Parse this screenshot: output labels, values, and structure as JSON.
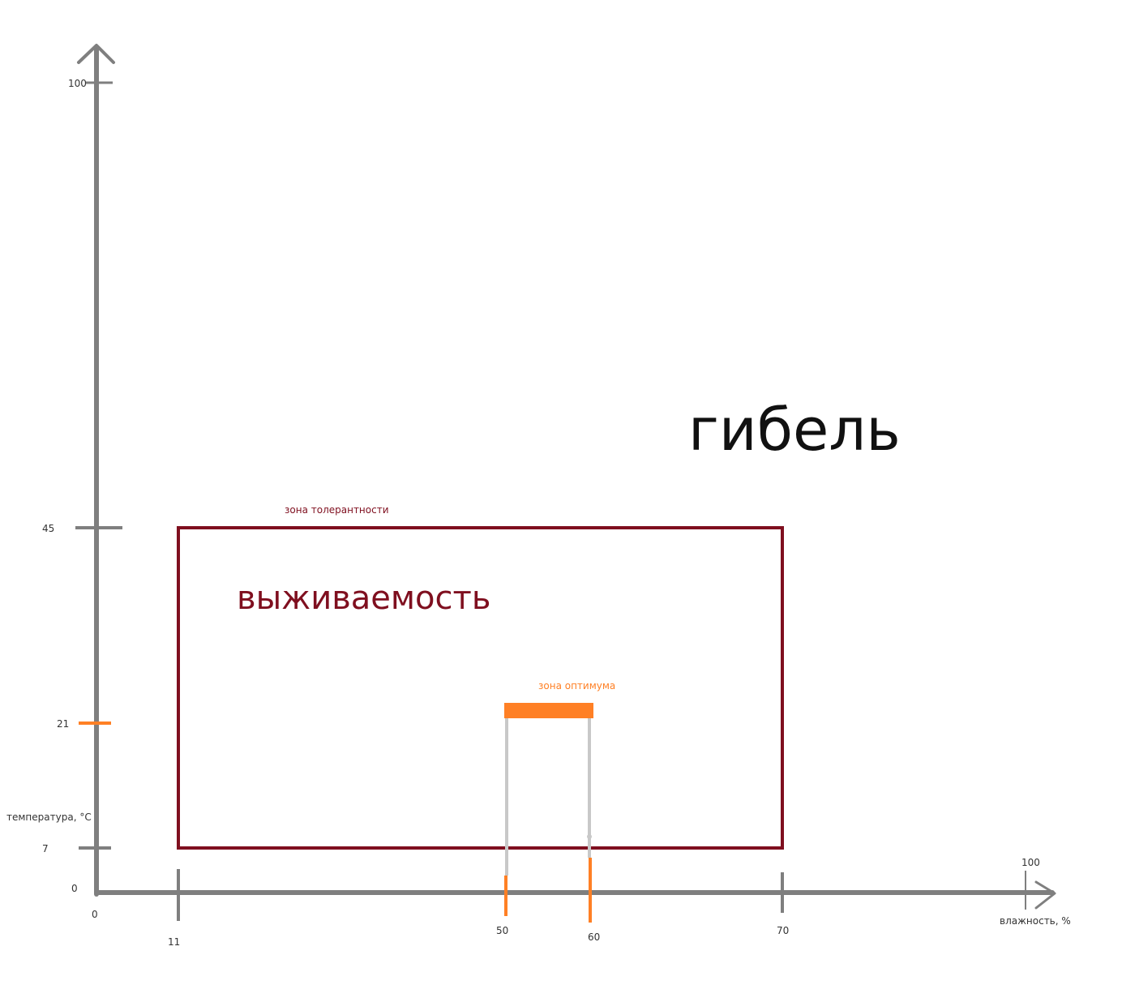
{
  "colors": {
    "axis": "#7f7f7f",
    "tolerance": "#7f0f1f",
    "optimum": "#ff8025",
    "guide": "#c8c8c8",
    "text": "#333333",
    "death": "#111111"
  },
  "axes": {
    "y_title": "температура, °C",
    "x_title": "влажность, %",
    "y_ticks": [
      {
        "label": "100",
        "value": 100,
        "highlight": false
      },
      {
        "label": "45",
        "value": 45,
        "highlight": false
      },
      {
        "label": "21",
        "value": 21,
        "highlight": true
      },
      {
        "label": "7",
        "value": 7,
        "highlight": false
      },
      {
        "label": "0",
        "value": 0,
        "highlight": false
      }
    ],
    "x_ticks": [
      {
        "label": "0",
        "value": 0,
        "highlight": false
      },
      {
        "label": "11",
        "value": 11,
        "highlight": false
      },
      {
        "label": "50",
        "value": 50,
        "highlight": true
      },
      {
        "label": "60",
        "value": 60,
        "highlight": true
      },
      {
        "label": "70",
        "value": 70,
        "highlight": false
      },
      {
        "label": "100",
        "value": 100,
        "highlight": false
      }
    ]
  },
  "zones": {
    "tolerance": {
      "title": "зона толерантности",
      "inner_label": "выживаемость",
      "humidity_range": [
        11,
        70
      ],
      "temperature_range": [
        7,
        45
      ]
    },
    "optimum": {
      "title": "зона оптимума",
      "humidity_range": [
        50,
        60
      ],
      "temperature": 21
    }
  },
  "death_label": "гибель"
}
